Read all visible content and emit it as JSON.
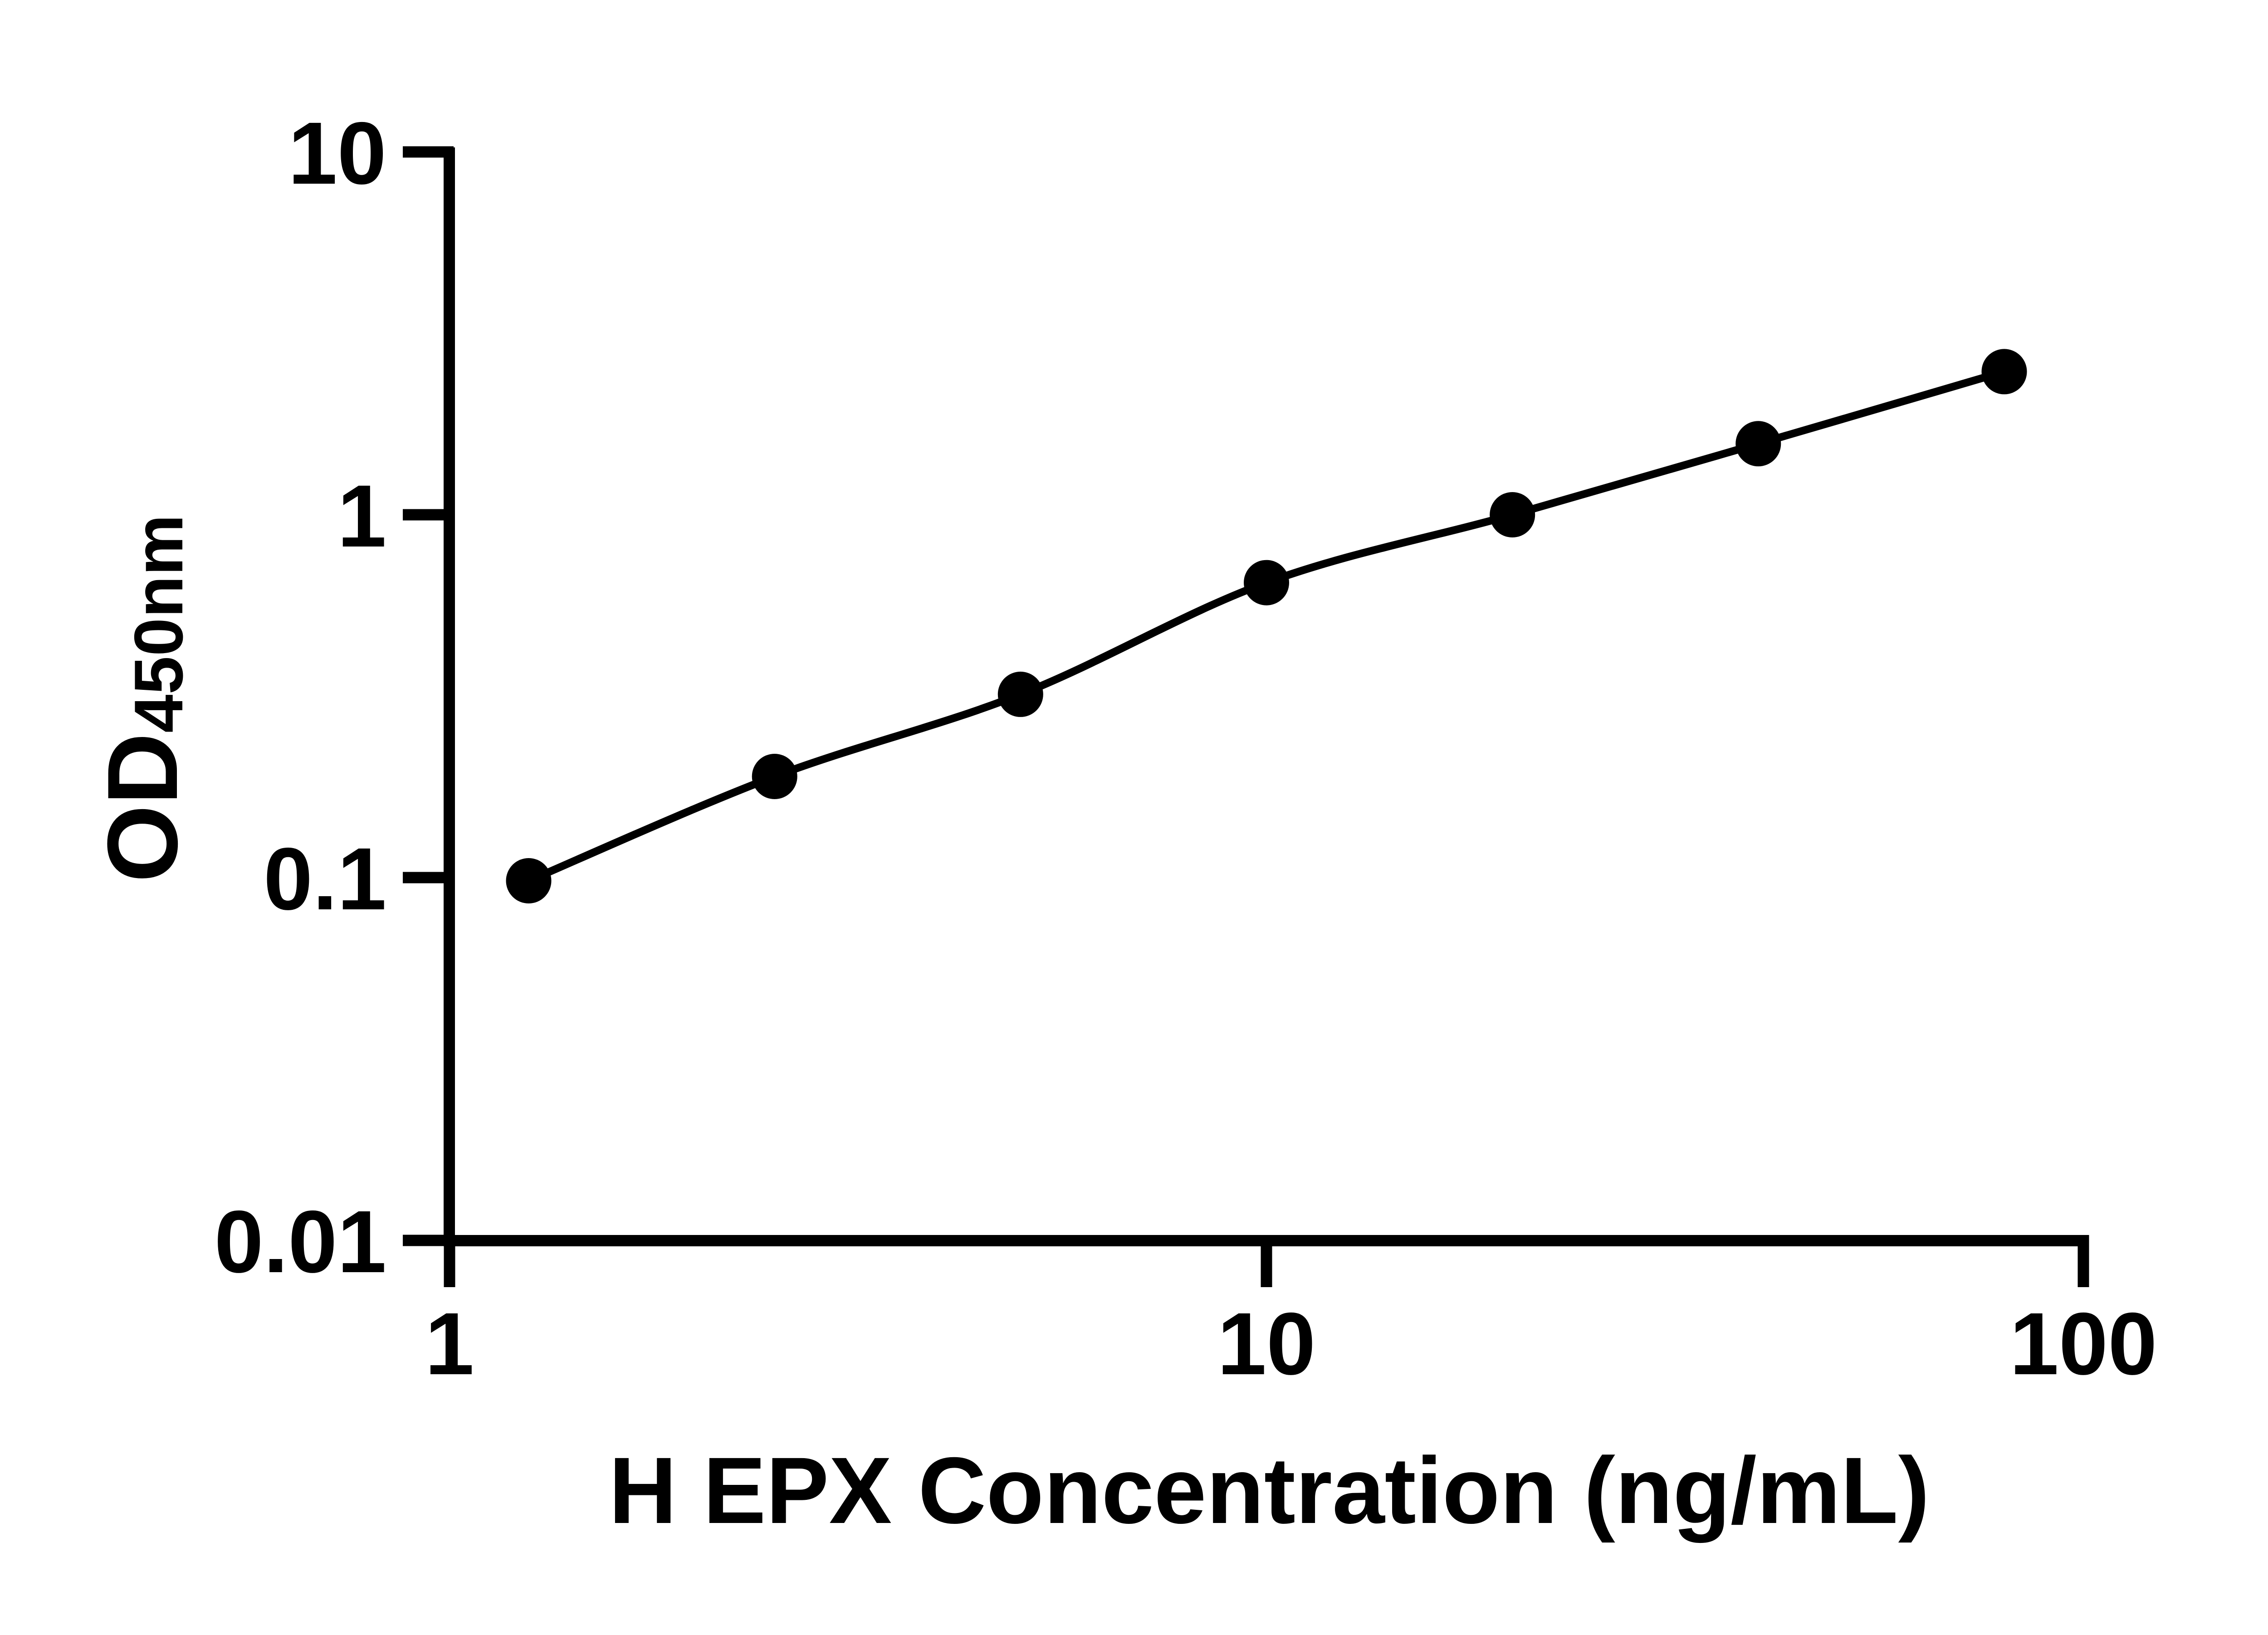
{
  "page": {
    "background_color": "#ffffff",
    "foreground_color": "#000000"
  },
  "chart_data": {
    "type": "scatter",
    "subtype": "log-log standard curve with fitted connecting line",
    "title": "",
    "xlabel": "H EPX Concentration (ng/mL)",
    "ylabel": "OD450nm",
    "ylabel_main": "OD",
    "ylabel_sub": "450nm",
    "x": [
      1.25,
      2.5,
      5,
      10,
      20,
      40,
      80
    ],
    "y": [
      0.098,
      0.19,
      0.32,
      0.65,
      1.0,
      1.57,
      2.48
    ],
    "x_scale": "log10",
    "y_scale": "log10",
    "xlim": [
      1,
      100
    ],
    "ylim": [
      0.01,
      10
    ],
    "x_ticks": {
      "values": [
        1,
        10,
        100
      ],
      "labels": [
        "1",
        "10",
        "100"
      ]
    },
    "y_ticks": {
      "values": [
        10,
        1,
        0.1,
        0.01
      ],
      "labels": [
        "10",
        "1",
        "0.1",
        "0.01"
      ]
    },
    "grid": false,
    "legend": false,
    "marker": {
      "shape": "circle",
      "color": "#000000"
    },
    "line": {
      "color": "#000000",
      "style": "solid"
    }
  }
}
